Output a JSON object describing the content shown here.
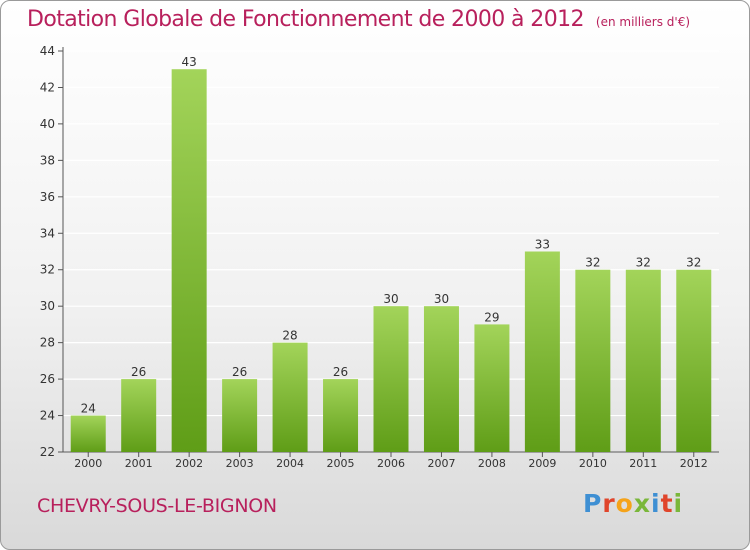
{
  "header": {
    "title": "Dotation Globale de Fonctionnement de 2000 à 2012",
    "subtitle": "(en milliers d'€)"
  },
  "footer": {
    "city": "CHEVRY-SOUS-LE-BIGNON",
    "logo": "Proxiti"
  },
  "colors": {
    "title": "#b8205c",
    "bar_light": "#a3d45a",
    "bar_dark": "#5f9d17",
    "grid": "#ffffff"
  },
  "chart_data": {
    "type": "bar",
    "title": "Dotation Globale de Fonctionnement de 2000 à 2012",
    "subtitle": "(en milliers d'€)",
    "xlabel": "",
    "ylabel": "",
    "categories": [
      "2000",
      "2001",
      "2002",
      "2003",
      "2004",
      "2005",
      "2006",
      "2007",
      "2008",
      "2009",
      "2010",
      "2011",
      "2012"
    ],
    "values": [
      24,
      26,
      43,
      26,
      28,
      26,
      30,
      30,
      29,
      33,
      32,
      32,
      32
    ],
    "ylim": [
      22,
      44
    ],
    "yticks": [
      22,
      24,
      26,
      28,
      30,
      32,
      34,
      36,
      38,
      40,
      42,
      44
    ],
    "grid": true,
    "data_labels": true
  }
}
